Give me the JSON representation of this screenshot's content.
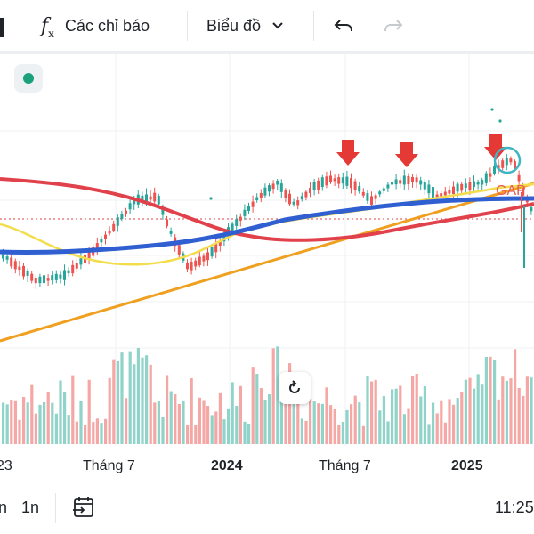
{
  "toolbar": {
    "indicators_label": "Các chỉ báo",
    "chart_type_label": "Biểu đồ",
    "indicators_icon": "fx-icon",
    "chart_type_icon": "chevron-down-icon",
    "undo_icon": "undo-icon",
    "redo_icon": "redo-icon"
  },
  "bottombar": {
    "range_partial": "n",
    "range_1y": "1n",
    "date_range_icon": "calendar-arrow-icon",
    "time_partial": "11:25"
  },
  "chart_data": {
    "type": "candlestick",
    "x_tick_labels": [
      "23",
      "Tháng 7",
      "2024",
      "Tháng 7",
      "2025"
    ],
    "annotations": [
      "GAP"
    ],
    "colors": {
      "up": "#26a69a",
      "down": "#ef5350",
      "ma_blue": "#2f5fd0",
      "ma_red": "#e0414b",
      "ma_yellow": "#f3dd4c",
      "trendline": "#f0a020",
      "arrow": "#e53935",
      "circle": "#3fb6c4"
    }
  }
}
